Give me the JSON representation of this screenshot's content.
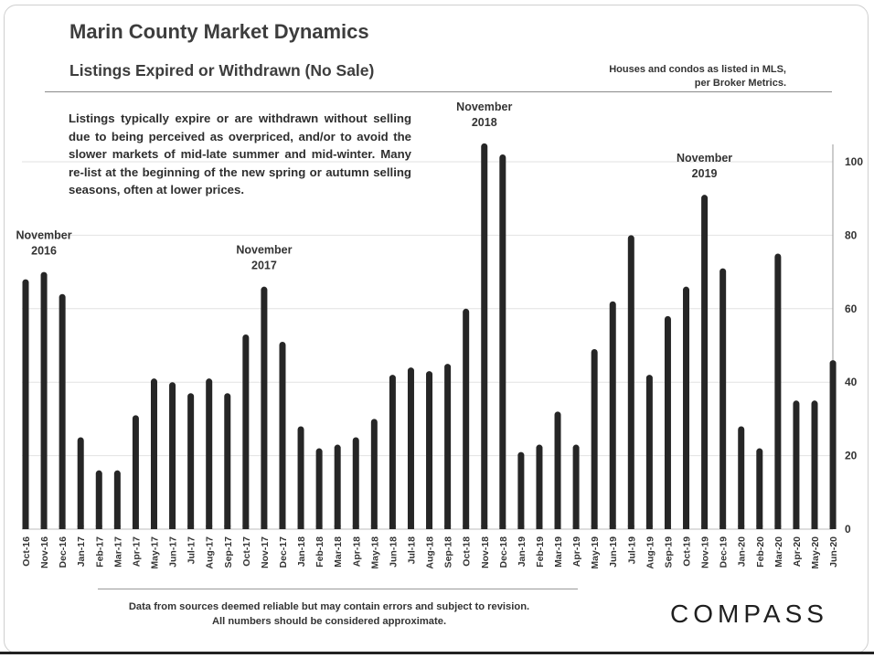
{
  "header": {
    "title": "Marin County Market Dynamics",
    "subtitle": "Listings Expired or Withdrawn (No Sale)",
    "source_note": "Houses and condos as listed in MLS, per Broker Metrics."
  },
  "description": "Listings typically expire or are withdrawn without selling due to being perceived as overpriced, and/or to avoid the slower markets of mid-late summer and mid-winter. Many re-list at the beginning of the new spring or autumn selling seasons, often at lower prices.",
  "footer": {
    "disclaimer_line1": "Data from sources deemed reliable but may contain errors and subject to revision.",
    "disclaimer_line2": "All numbers should be considered approximate.",
    "logo": "COMPASS"
  },
  "chart_data": {
    "type": "bar",
    "title": "Listings Expired or Withdrawn (No Sale)",
    "xlabel": "",
    "ylabel": "",
    "ylim": [
      0,
      100
    ],
    "yticks": [
      0,
      20,
      40,
      60,
      80,
      100
    ],
    "grid": true,
    "bar_color": "#262626",
    "categories": [
      "Oct-16",
      "Nov-16",
      "Dec-16",
      "Jan-17",
      "Feb-17",
      "Mar-17",
      "Apr-17",
      "May-17",
      "Jun-17",
      "Jul-17",
      "Aug-17",
      "Sep-17",
      "Oct-17",
      "Nov-17",
      "Dec-17",
      "Jan-18",
      "Feb-18",
      "Mar-18",
      "Apr-18",
      "May-18",
      "Jun-18",
      "Jul-18",
      "Aug-18",
      "Sep-18",
      "Oct-18",
      "Nov-18",
      "Dec-18",
      "Jan-19",
      "Feb-19",
      "Mar-19",
      "Apr-19",
      "May-19",
      "Jun-19",
      "Jul-19",
      "Aug-19",
      "Sep-19",
      "Oct-19",
      "Nov-19",
      "Dec-19",
      "Jan-20",
      "Feb-20",
      "Mar-20",
      "Apr-20",
      "May-20",
      "Jun-20"
    ],
    "values": [
      68,
      70,
      64,
      25,
      16,
      16,
      31,
      41,
      40,
      37,
      41,
      37,
      53,
      66,
      51,
      28,
      22,
      23,
      25,
      30,
      42,
      44,
      43,
      45,
      60,
      105,
      102,
      21,
      23,
      32,
      23,
      49,
      62,
      80,
      42,
      58,
      66,
      91,
      71,
      28,
      22,
      75,
      35,
      35,
      46
    ],
    "annotations": [
      {
        "category": "Nov-16",
        "line1": "November",
        "line2": "2016"
      },
      {
        "category": "Nov-17",
        "line1": "November",
        "line2": "2017"
      },
      {
        "category": "Nov-18",
        "line1": "November",
        "line2": "2018"
      },
      {
        "category": "Nov-19",
        "line1": "November",
        "line2": "2019"
      }
    ]
  }
}
